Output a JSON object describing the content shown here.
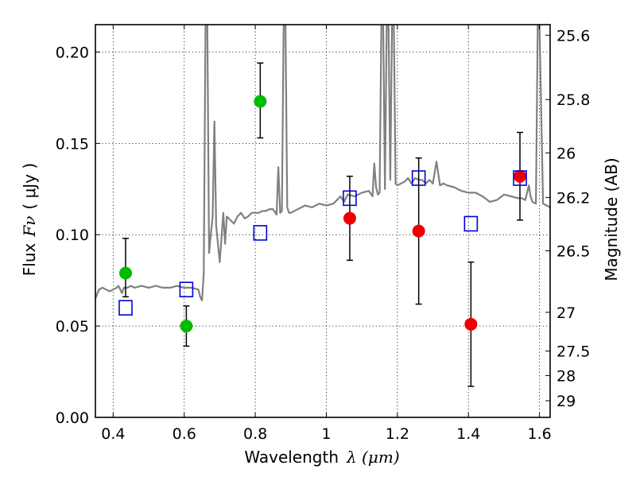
{
  "chart_data": {
    "type": "scatter",
    "xlabel": "Wavelength",
    "xlabel_math": "λ (μm)",
    "ylabel": "Flux",
    "ylabel_math": "Fν",
    "ylabel_unit": "( μJy )",
    "ylabel_right": "Magnitude (AB)",
    "xlim": [
      0.35,
      1.63
    ],
    "ylim": [
      0.0,
      0.215
    ],
    "grid": true,
    "x_ticks": [
      0.4,
      0.6,
      0.8,
      1.0,
      1.2,
      1.4,
      1.6
    ],
    "x_tick_labels": [
      "0.4",
      "0.6",
      "0.8",
      "1",
      "1.2",
      "1.4",
      "1.6"
    ],
    "y_ticks": [
      0.0,
      0.05,
      0.1,
      0.15,
      0.2
    ],
    "y_tick_labels": [
      "0.00",
      "0.05",
      "0.10",
      "0.15",
      "0.20"
    ],
    "right_ticks": [
      {
        "label": "25.6",
        "flux": 0.2092
      },
      {
        "label": "25.8",
        "flux": 0.174
      },
      {
        "label": "26",
        "flux": 0.1448
      },
      {
        "label": "26.2",
        "flux": 0.1204
      },
      {
        "label": "26.5",
        "flux": 0.0912
      },
      {
        "label": "27",
        "flux": 0.0575
      },
      {
        "label": "27.5",
        "flux": 0.0363
      },
      {
        "label": "28",
        "flux": 0.0229
      },
      {
        "label": "29",
        "flux": 0.0091
      }
    ],
    "series": [
      {
        "name": "model spectrum",
        "kind": "line",
        "color": "#808080",
        "x": [
          0.35,
          0.36,
          0.37,
          0.38,
          0.39,
          0.4,
          0.41,
          0.415,
          0.42,
          0.425,
          0.43,
          0.44,
          0.45,
          0.46,
          0.48,
          0.5,
          0.52,
          0.54,
          0.56,
          0.58,
          0.6,
          0.62,
          0.64,
          0.645,
          0.65,
          0.655,
          0.66,
          0.665,
          0.67,
          0.675,
          0.68,
          0.685,
          0.69,
          0.7,
          0.71,
          0.715,
          0.72,
          0.73,
          0.74,
          0.75,
          0.76,
          0.77,
          0.78,
          0.79,
          0.8,
          0.81,
          0.82,
          0.83,
          0.84,
          0.85,
          0.86,
          0.865,
          0.87,
          0.875,
          0.88,
          0.885,
          0.89,
          0.895,
          0.9,
          0.92,
          0.94,
          0.96,
          0.98,
          1.0,
          1.02,
          1.04,
          1.05,
          1.06,
          1.08,
          1.1,
          1.12,
          1.13,
          1.135,
          1.14,
          1.145,
          1.15,
          1.155,
          1.16,
          1.165,
          1.17,
          1.175,
          1.18,
          1.185,
          1.19,
          1.195,
          1.2,
          1.21,
          1.22,
          1.23,
          1.24,
          1.25,
          1.26,
          1.27,
          1.28,
          1.29,
          1.3,
          1.31,
          1.32,
          1.33,
          1.34,
          1.36,
          1.38,
          1.4,
          1.42,
          1.44,
          1.46,
          1.48,
          1.5,
          1.52,
          1.54,
          1.55,
          1.56,
          1.57,
          1.575,
          1.58,
          1.59,
          1.595,
          1.6,
          1.61,
          1.62,
          1.63
        ],
        "y": [
          0.065,
          0.07,
          0.071,
          0.07,
          0.069,
          0.07,
          0.071,
          0.072,
          0.07,
          0.068,
          0.071,
          0.071,
          0.072,
          0.071,
          0.072,
          0.071,
          0.072,
          0.071,
          0.071,
          0.072,
          0.071,
          0.071,
          0.07,
          0.066,
          0.064,
          0.079,
          0.215,
          0.215,
          0.09,
          0.1,
          0.11,
          0.162,
          0.105,
          0.085,
          0.112,
          0.095,
          0.11,
          0.108,
          0.106,
          0.11,
          0.112,
          0.109,
          0.11,
          0.112,
          0.112,
          0.112,
          0.113,
          0.113,
          0.114,
          0.114,
          0.111,
          0.137,
          0.112,
          0.113,
          0.215,
          0.215,
          0.115,
          0.112,
          0.112,
          0.114,
          0.116,
          0.115,
          0.117,
          0.116,
          0.117,
          0.121,
          0.118,
          0.122,
          0.121,
          0.123,
          0.124,
          0.121,
          0.139,
          0.126,
          0.122,
          0.123,
          0.215,
          0.215,
          0.125,
          0.215,
          0.215,
          0.13,
          0.215,
          0.215,
          0.128,
          0.127,
          0.128,
          0.129,
          0.131,
          0.128,
          0.131,
          0.13,
          0.13,
          0.128,
          0.13,
          0.128,
          0.14,
          0.127,
          0.128,
          0.127,
          0.126,
          0.124,
          0.123,
          0.123,
          0.121,
          0.118,
          0.119,
          0.122,
          0.121,
          0.12,
          0.12,
          0.119,
          0.127,
          0.121,
          0.118,
          0.117,
          0.215,
          0.215,
          0.117,
          0.116,
          0.115
        ]
      },
      {
        "name": "green photometry",
        "kind": "errorbar",
        "color": "#00bb00",
        "points": [
          {
            "x": 0.435,
            "y": 0.079,
            "err_lo": 0.013,
            "err_hi": 0.019
          },
          {
            "x": 0.606,
            "y": 0.05,
            "err_lo": 0.011,
            "err_hi": 0.011
          },
          {
            "x": 0.814,
            "y": 0.173,
            "err_lo": 0.02,
            "err_hi": 0.021
          }
        ]
      },
      {
        "name": "red photometry",
        "kind": "errorbar",
        "color": "#ee0000",
        "points": [
          {
            "x": 1.066,
            "y": 0.109,
            "err_lo": 0.023,
            "err_hi": 0.023
          },
          {
            "x": 1.26,
            "y": 0.102,
            "err_lo": 0.04,
            "err_hi": 0.04
          },
          {
            "x": 1.407,
            "y": 0.051,
            "err_lo": 0.034,
            "err_hi": 0.034
          },
          {
            "x": 1.545,
            "y": 0.132,
            "err_lo": 0.024,
            "err_hi": 0.024
          }
        ]
      },
      {
        "name": "model photometry",
        "kind": "open_square",
        "color": "#0000dd",
        "points": [
          {
            "x": 0.435,
            "y": 0.06
          },
          {
            "x": 0.606,
            "y": 0.07
          },
          {
            "x": 0.814,
            "y": 0.101
          },
          {
            "x": 1.066,
            "y": 0.12
          },
          {
            "x": 1.26,
            "y": 0.131
          },
          {
            "x": 1.407,
            "y": 0.106
          },
          {
            "x": 1.545,
            "y": 0.131
          }
        ]
      }
    ]
  }
}
